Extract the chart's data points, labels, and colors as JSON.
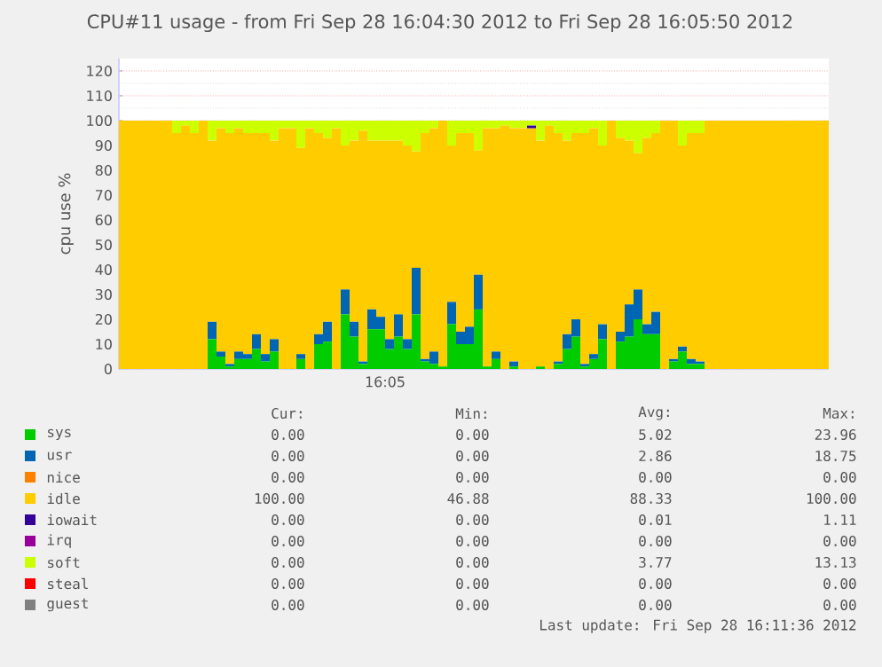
{
  "chart_data": {
    "type": "bar",
    "stacked": true,
    "title": "CPU#11 usage - from Fri Sep 28 16:04:30 2012 to Fri Sep 28 16:05:50 2012",
    "ylabel": "cpu use %",
    "categories": [
      null,
      null,
      null,
      null,
      null,
      null,
      null,
      null,
      null,
      null,
      null,
      null,
      null,
      null,
      null,
      null,
      null,
      null,
      null,
      null,
      null,
      null,
      null,
      null,
      null,
      null,
      null,
      null,
      null,
      null,
      null,
      null,
      null,
      null,
      null,
      null,
      null,
      null,
      null,
      null,
      null,
      null,
      null,
      null,
      null,
      null,
      null,
      null,
      null,
      null,
      null,
      null,
      null,
      null,
      null,
      null,
      null,
      null,
      null,
      null,
      null,
      null,
      null,
      null,
      null,
      null,
      null,
      null,
      null,
      null,
      null,
      null,
      null,
      null,
      null,
      null,
      null,
      null,
      null,
      null
    ],
    "ylim": [
      0,
      125
    ],
    "yticks": [
      {
        "value": 0,
        "label": "0"
      },
      {
        "value": 10,
        "label": "10"
      },
      {
        "value": 20,
        "label": "20"
      },
      {
        "value": 30,
        "label": "30"
      },
      {
        "value": 40,
        "label": "40"
      },
      {
        "value": 50,
        "label": "50"
      },
      {
        "value": 60,
        "label": "60"
      },
      {
        "value": 70,
        "label": "70"
      },
      {
        "value": 80,
        "label": "80"
      },
      {
        "value": 90,
        "label": "90"
      },
      {
        "value": 100,
        "label": "100"
      },
      {
        "value": 110,
        "label": "110"
      },
      {
        "value": 120,
        "label": "120"
      }
    ],
    "grid": "y",
    "legend": "bottom",
    "series": [
      {
        "name": "sys",
        "color": "#00cc00",
        "values": [
          0,
          0,
          0,
          0,
          0,
          0,
          0,
          0,
          0,
          0,
          12,
          5,
          1,
          4,
          4,
          8,
          3,
          7,
          0,
          0,
          4,
          0,
          10,
          11,
          0,
          22,
          13,
          2,
          16,
          16,
          8,
          13,
          8,
          22,
          3,
          2,
          1,
          18,
          10,
          10,
          23.96,
          1,
          4,
          0,
          1,
          0,
          0,
          1,
          0,
          2,
          8,
          13,
          1,
          4,
          12,
          0,
          11,
          13,
          20,
          14,
          14,
          0,
          3,
          7,
          2,
          2,
          0,
          0,
          0,
          0,
          0,
          0,
          0,
          0,
          0,
          0,
          0,
          0,
          0,
          0
        ]
      },
      {
        "name": "usr",
        "color": "#0066b3",
        "values": [
          0,
          0,
          0,
          0,
          0,
          0,
          0,
          0,
          0,
          0,
          7,
          2,
          1,
          3,
          2,
          6,
          3,
          5,
          0,
          0,
          2,
          0,
          4,
          8,
          0,
          10,
          6,
          1,
          8,
          5,
          4,
          9,
          4,
          18.75,
          1,
          5,
          0,
          9,
          5,
          7,
          14,
          0,
          3,
          0,
          2,
          0,
          0,
          0,
          0,
          1,
          6,
          7,
          1,
          2,
          6,
          0,
          4,
          13,
          12,
          4,
          9,
          0,
          1,
          2,
          2,
          1,
          0,
          0,
          0,
          0,
          0,
          0,
          0,
          0,
          0,
          0,
          0,
          0,
          0,
          0
        ]
      },
      {
        "name": "nice",
        "color": "#ff8000",
        "values": [
          0,
          0,
          0,
          0,
          0,
          0,
          0,
          0,
          0,
          0,
          0,
          0,
          0,
          0,
          0,
          0,
          0,
          0,
          0,
          0,
          0,
          0,
          0,
          0,
          0,
          0,
          0,
          0,
          0,
          0,
          0,
          0,
          0,
          0,
          0,
          0,
          0,
          0,
          0,
          0,
          0,
          0,
          0,
          0,
          0,
          0,
          0,
          0,
          0,
          0,
          0,
          0,
          0,
          0,
          0,
          0,
          0,
          0,
          0,
          0,
          0,
          0,
          0,
          0,
          0,
          0,
          0,
          0,
          0,
          0,
          0,
          0,
          0,
          0,
          0,
          0,
          0,
          0,
          0,
          0
        ]
      },
      {
        "name": "idle",
        "color": "#ffcc00",
        "values": [
          100,
          100,
          100,
          100,
          100,
          100,
          95,
          98,
          95,
          100,
          73,
          90,
          93,
          90,
          89,
          81,
          89,
          80,
          97,
          97,
          83,
          97,
          81,
          74,
          97,
          58,
          73,
          93,
          68,
          71,
          80,
          70,
          78,
          46.88,
          91,
          90,
          99,
          63,
          80,
          78,
          50.04,
          96,
          90,
          98,
          94,
          97,
          96.89,
          91,
          98,
          92,
          78,
          75,
          93,
          91,
          72,
          100,
          78,
          66,
          54.87,
          75,
          72,
          100,
          96,
          81,
          91,
          92,
          100,
          100,
          100,
          100,
          100,
          100,
          100,
          100,
          100,
          100,
          100,
          100,
          100,
          100
        ]
      },
      {
        "name": "iowait",
        "color": "#330099",
        "values": [
          0,
          0,
          0,
          0,
          0,
          0,
          0,
          0,
          0,
          0,
          0,
          0,
          0,
          0,
          0,
          0,
          0,
          0,
          0,
          0,
          0,
          0,
          0,
          0,
          0,
          0,
          0,
          0,
          0,
          0,
          0,
          0,
          0,
          0,
          0,
          0,
          0,
          0,
          0,
          0,
          0,
          0,
          0,
          0,
          0,
          0,
          1.11,
          0,
          0,
          0,
          0,
          0,
          0,
          0,
          0,
          0,
          0,
          0,
          0,
          0,
          0,
          0,
          0,
          0,
          0,
          0,
          0,
          0,
          0,
          0,
          0,
          0,
          0,
          0,
          0,
          0,
          0,
          0,
          0,
          0
        ]
      },
      {
        "name": "irq",
        "color": "#990099",
        "values": [
          0,
          0,
          0,
          0,
          0,
          0,
          0,
          0,
          0,
          0,
          0,
          0,
          0,
          0,
          0,
          0,
          0,
          0,
          0,
          0,
          0,
          0,
          0,
          0,
          0,
          0,
          0,
          0,
          0,
          0,
          0,
          0,
          0,
          0,
          0,
          0,
          0,
          0,
          0,
          0,
          0,
          0,
          0,
          0,
          0,
          0,
          0,
          0,
          0,
          0,
          0,
          0,
          0,
          0,
          0,
          0,
          0,
          0,
          0,
          0,
          0,
          0,
          0,
          0,
          0,
          0,
          0,
          0,
          0,
          0,
          0,
          0,
          0,
          0,
          0,
          0,
          0,
          0,
          0,
          0
        ]
      },
      {
        "name": "soft",
        "color": "#ccff00",
        "values": [
          0,
          0,
          0,
          0,
          0,
          0,
          5,
          2,
          5,
          0,
          8,
          3,
          5,
          3,
          5,
          5,
          5,
          8,
          3,
          3,
          11,
          3,
          5,
          7,
          3,
          10,
          8,
          4,
          8,
          8,
          8,
          8,
          10,
          12.37,
          5,
          3,
          0,
          10,
          5,
          5,
          12,
          3,
          3,
          2,
          3,
          3,
          2,
          8,
          2,
          5,
          8,
          5,
          5,
          3,
          10,
          0,
          7,
          8,
          13.13,
          7,
          5,
          0,
          0,
          10,
          5,
          5,
          0,
          0,
          0,
          0,
          0,
          0,
          0,
          0,
          0,
          0,
          0,
          0,
          0,
          0
        ]
      },
      {
        "name": "steal",
        "color": "#ff0000",
        "values": [
          0,
          0,
          0,
          0,
          0,
          0,
          0,
          0,
          0,
          0,
          0,
          0,
          0,
          0,
          0,
          0,
          0,
          0,
          0,
          0,
          0,
          0,
          0,
          0,
          0,
          0,
          0,
          0,
          0,
          0,
          0,
          0,
          0,
          0,
          0,
          0,
          0,
          0,
          0,
          0,
          0,
          0,
          0,
          0,
          0,
          0,
          0,
          0,
          0,
          0,
          0,
          0,
          0,
          0,
          0,
          0,
          0,
          0,
          0,
          0,
          0,
          0,
          0,
          0,
          0,
          0,
          0,
          0,
          0,
          0,
          0,
          0,
          0,
          0,
          0,
          0,
          0,
          0,
          0,
          0
        ]
      },
      {
        "name": "guest",
        "color": "#808080",
        "values": [
          0,
          0,
          0,
          0,
          0,
          0,
          0,
          0,
          0,
          0,
          0,
          0,
          0,
          0,
          0,
          0,
          0,
          0,
          0,
          0,
          0,
          0,
          0,
          0,
          0,
          0,
          0,
          0,
          0,
          0,
          0,
          0,
          0,
          0,
          0,
          0,
          0,
          0,
          0,
          0,
          0,
          0,
          0,
          0,
          0,
          0,
          0,
          0,
          0,
          0,
          0,
          0,
          0,
          0,
          0,
          0,
          0,
          0,
          0,
          0,
          0,
          0,
          0,
          0,
          0,
          0,
          0,
          0,
          0,
          0,
          0,
          0,
          0,
          0,
          0,
          0,
          0,
          0,
          0,
          0
        ]
      }
    ],
    "annotations": [
      "Cur:",
      "Min:",
      "Avg:",
      "Max:",
      "0.00",
      "0.00",
      "5.02",
      "23.96",
      "0.00",
      "0.00",
      "2.86",
      "18.75",
      "0.00",
      "0.00",
      "0.00",
      "0.00",
      "100.00",
      "46.88",
      "88.33",
      "100.00",
      "0.00",
      "0.00",
      "0.01",
      "1.11",
      "0.00",
      "0.00",
      "0.00",
      "0.00",
      "0.00",
      "0.00",
      "3.77",
      "13.13",
      "0.00",
      "0.00",
      "0.00",
      "0.00",
      "0.00",
      "0.00",
      "0.00",
      "0.00",
      "Last update: Fri Sep 28 16:11:36 2012",
      "16:05"
    ]
  }
}
